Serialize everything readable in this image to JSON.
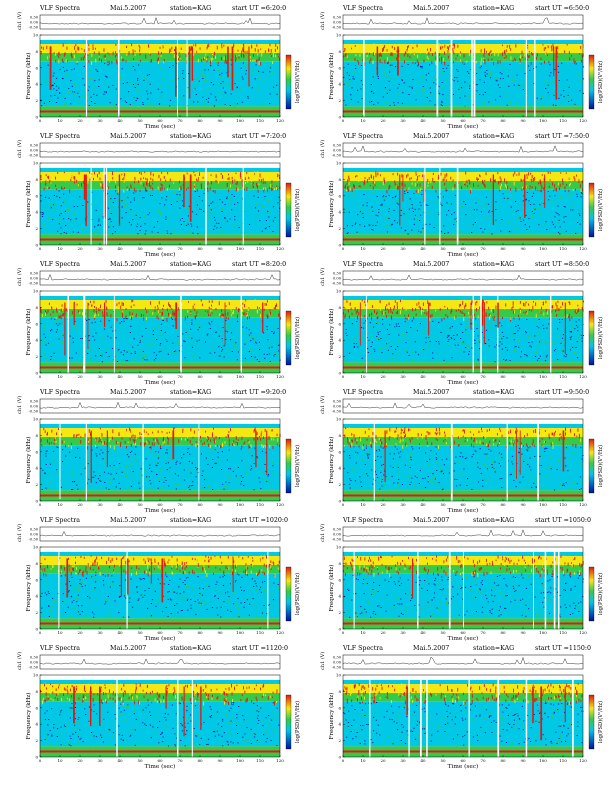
{
  "panel_common": {
    "title_left": "VLF Spectra",
    "date": "Mai.5.2007",
    "station": "station=KAG",
    "start": "start  UT",
    "ch1_label": "ch1 (V)",
    "freq_label": "Frequency  (kHz)",
    "time_label": "Time  (sec)",
    "colorbar_label": "log(PSD)(V²/Hz)",
    "ch1_ticks": [
      "0.30",
      "0.00",
      "-0.30"
    ],
    "freq_ticks": [
      "0",
      "2",
      "4",
      "6",
      "8",
      "10"
    ],
    "time_ticks": [
      "0",
      "10",
      "20",
      "30",
      "40",
      "50",
      "60",
      "70",
      "80",
      "90",
      "100",
      "110",
      "120"
    ]
  },
  "panels": [
    {
      "start_ut": "=6:20:0"
    },
    {
      "start_ut": "=6:50:0"
    },
    {
      "start_ut": "=7:20:0"
    },
    {
      "start_ut": "=7:50:0"
    },
    {
      "start_ut": "=8:20:0"
    },
    {
      "start_ut": "=8:50:0"
    },
    {
      "start_ut": "=9:20:0"
    },
    {
      "start_ut": "=9:50:0"
    },
    {
      "start_ut": "=1020:0"
    },
    {
      "start_ut": "=1050:0"
    },
    {
      "start_ut": "=1120:0"
    },
    {
      "start_ut": "=1150:0"
    }
  ],
  "chart_data": {
    "type": "heatmap",
    "x_range": [
      0,
      120
    ],
    "y_range": [
      0,
      10
    ],
    "ch1_range": [
      -0.3,
      0.3
    ],
    "colors": {
      "low": "#0010a0",
      "mid_low": "#00c8e6",
      "mid": "#36c94a",
      "mid_high": "#f5e812",
      "high": "#e01a12"
    }
  }
}
